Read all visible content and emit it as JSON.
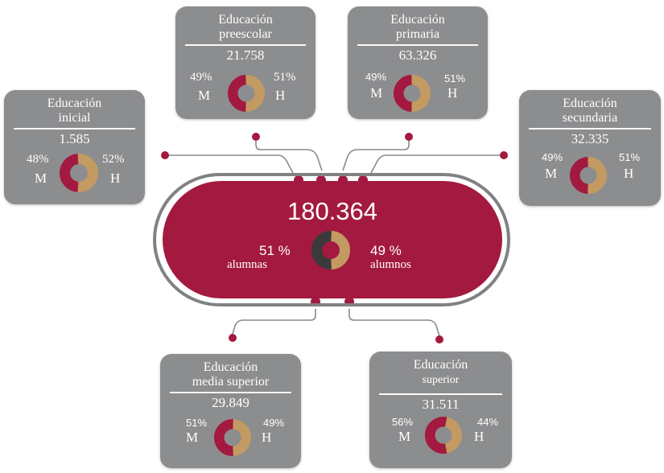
{
  "colors": {
    "crimson": "#a3193f",
    "gold": "#c39a62",
    "dark": "#3a3a3a",
    "gray": "#8c8d8f",
    "connector": "#8a8a8a"
  },
  "center": {
    "total": "180.364",
    "female_pct": "51 %",
    "female_label": "alumnas",
    "male_pct": "49 %",
    "male_label": "alumnos",
    "female_fraction": 0.51
  },
  "levels": {
    "inicial": {
      "title1": "Educación",
      "title2": "inicial",
      "value": "1.585",
      "m_pct": "48%",
      "h_pct": "52%",
      "m_label": "M",
      "h_label": "H",
      "m_fraction": 0.48
    },
    "preescolar": {
      "title1": "Educación",
      "title2": "preescolar",
      "value": "21.758",
      "m_pct": "49%",
      "h_pct": "51%",
      "m_label": "M",
      "h_label": "H",
      "m_fraction": 0.49
    },
    "primaria": {
      "title1": "Educación",
      "title2": "primaria",
      "value": "63.326",
      "m_pct": "49%",
      "h_pct": "51%",
      "m_label": "M",
      "h_label": "H",
      "m_fraction": 0.49
    },
    "secundaria": {
      "title1": "Educación",
      "title2": "secundaria",
      "value": "32.335",
      "m_pct": "49%",
      "h_pct": "51%",
      "m_label": "M",
      "h_label": "H",
      "m_fraction": 0.49
    },
    "media": {
      "title1": "Educación",
      "title2": "media superior",
      "value": "29.849",
      "m_pct": "51%",
      "h_pct": "49%",
      "m_label": "M",
      "h_label": "H",
      "m_fraction": 0.51
    },
    "superior": {
      "title1": "Educación",
      "title2": "superior",
      "value": "31.511",
      "m_pct": "56%",
      "h_pct": "44%",
      "m_label": "M",
      "h_label": "H",
      "m_fraction": 0.56
    }
  }
}
